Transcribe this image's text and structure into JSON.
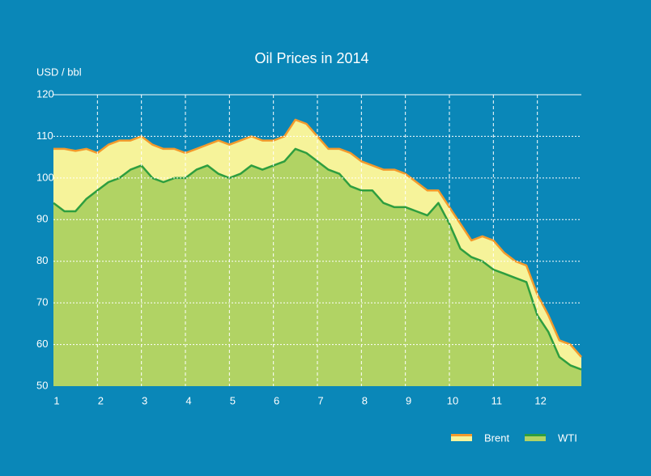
{
  "chart_data": {
    "type": "area",
    "title": "Oil Prices in 2014",
    "y_label": "USD / bbl",
    "x": [
      1.0,
      1.25,
      1.5,
      1.75,
      2.0,
      2.25,
      2.5,
      2.75,
      3.0,
      3.25,
      3.5,
      3.75,
      4.0,
      4.25,
      4.5,
      4.75,
      5.0,
      5.25,
      5.5,
      5.75,
      6.0,
      6.25,
      6.5,
      6.75,
      7.0,
      7.25,
      7.5,
      7.75,
      8.0,
      8.25,
      8.5,
      8.75,
      9.0,
      9.25,
      9.5,
      9.75,
      10.0,
      10.25,
      10.5,
      10.75,
      11.0,
      11.25,
      11.5,
      11.75,
      12.0,
      12.25,
      12.5,
      12.75,
      13.0
    ],
    "series": [
      {
        "name": "Brent",
        "color": "#f6f39a",
        "line_color": "#f39a2c",
        "values": [
          107,
          107,
          106.5,
          107,
          106,
          108,
          109,
          109,
          110,
          108,
          107,
          107,
          106,
          107,
          108,
          109,
          108,
          109,
          110,
          109,
          109,
          110,
          114,
          113,
          110,
          107,
          107,
          106,
          104,
          103,
          102,
          102,
          101,
          99,
          97,
          97,
          93,
          89,
          85,
          86,
          85,
          82,
          80,
          79,
          72,
          67,
          61,
          60,
          57
        ]
      },
      {
        "name": "WTI",
        "color": "#b1d364",
        "line_color": "#2e9e3f",
        "values": [
          94,
          92,
          92,
          95,
          97,
          99,
          100,
          102,
          103,
          100,
          99,
          100,
          100,
          102,
          103,
          101,
          100,
          101,
          103,
          102,
          103,
          104,
          107,
          106,
          104,
          102,
          101,
          98,
          97,
          97,
          94,
          93,
          93,
          92,
          91,
          94,
          89,
          83,
          81,
          80,
          78,
          77,
          76,
          75,
          67,
          63,
          57,
          55,
          54
        ]
      }
    ],
    "xlim": [
      1,
      13
    ],
    "xticks": [
      1,
      2,
      3,
      4,
      5,
      6,
      7,
      8,
      9,
      10,
      11,
      12
    ],
    "ylim": [
      50,
      120
    ],
    "yticks": [
      50,
      60,
      70,
      80,
      90,
      100,
      110,
      120
    ],
    "grid": true,
    "legend": "bottom-right"
  }
}
